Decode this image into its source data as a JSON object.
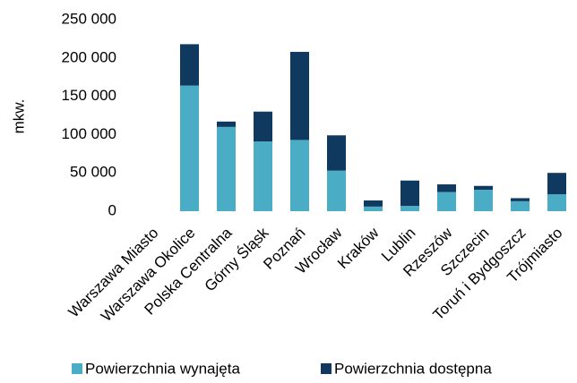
{
  "chart_data": {
    "type": "stacked_bar",
    "ylabel": "mkw.",
    "categories": [
      "Warszawa Miasto",
      "Warszawa Okolice",
      "Polska Centralna",
      "Górny Śląsk",
      "Poznań",
      "Wrocław",
      "Kraków",
      "Lublin",
      "Rzeszów",
      "Szczecin",
      "Toruń i Bydgoszcz",
      "Trójmiasto"
    ],
    "series": [
      {
        "name": "Powierzchnia wynajęta",
        "color": "#4bacc6",
        "values": [
          0,
          164000,
          110000,
          91000,
          93000,
          53000,
          6000,
          7000,
          25000,
          28000,
          13000,
          22000
        ]
      },
      {
        "name": "Powierzchnia dostępna",
        "color": "#10395f",
        "values": [
          0,
          54000,
          7000,
          39000,
          115000,
          46000,
          8000,
          33000,
          10000,
          5000,
          4000,
          28000
        ]
      }
    ],
    "ylim": [
      0,
      250000
    ],
    "yticks": [
      0,
      {
        "value": 50000,
        "label": "50 000"
      },
      {
        "value": 100000,
        "label": "100 000"
      },
      {
        "value": 150000,
        "label": "150 000"
      },
      {
        "value": 200000,
        "label": "200 000"
      },
      {
        "value": 250000,
        "label": "250 000"
      }
    ],
    "legend": "bottom"
  }
}
